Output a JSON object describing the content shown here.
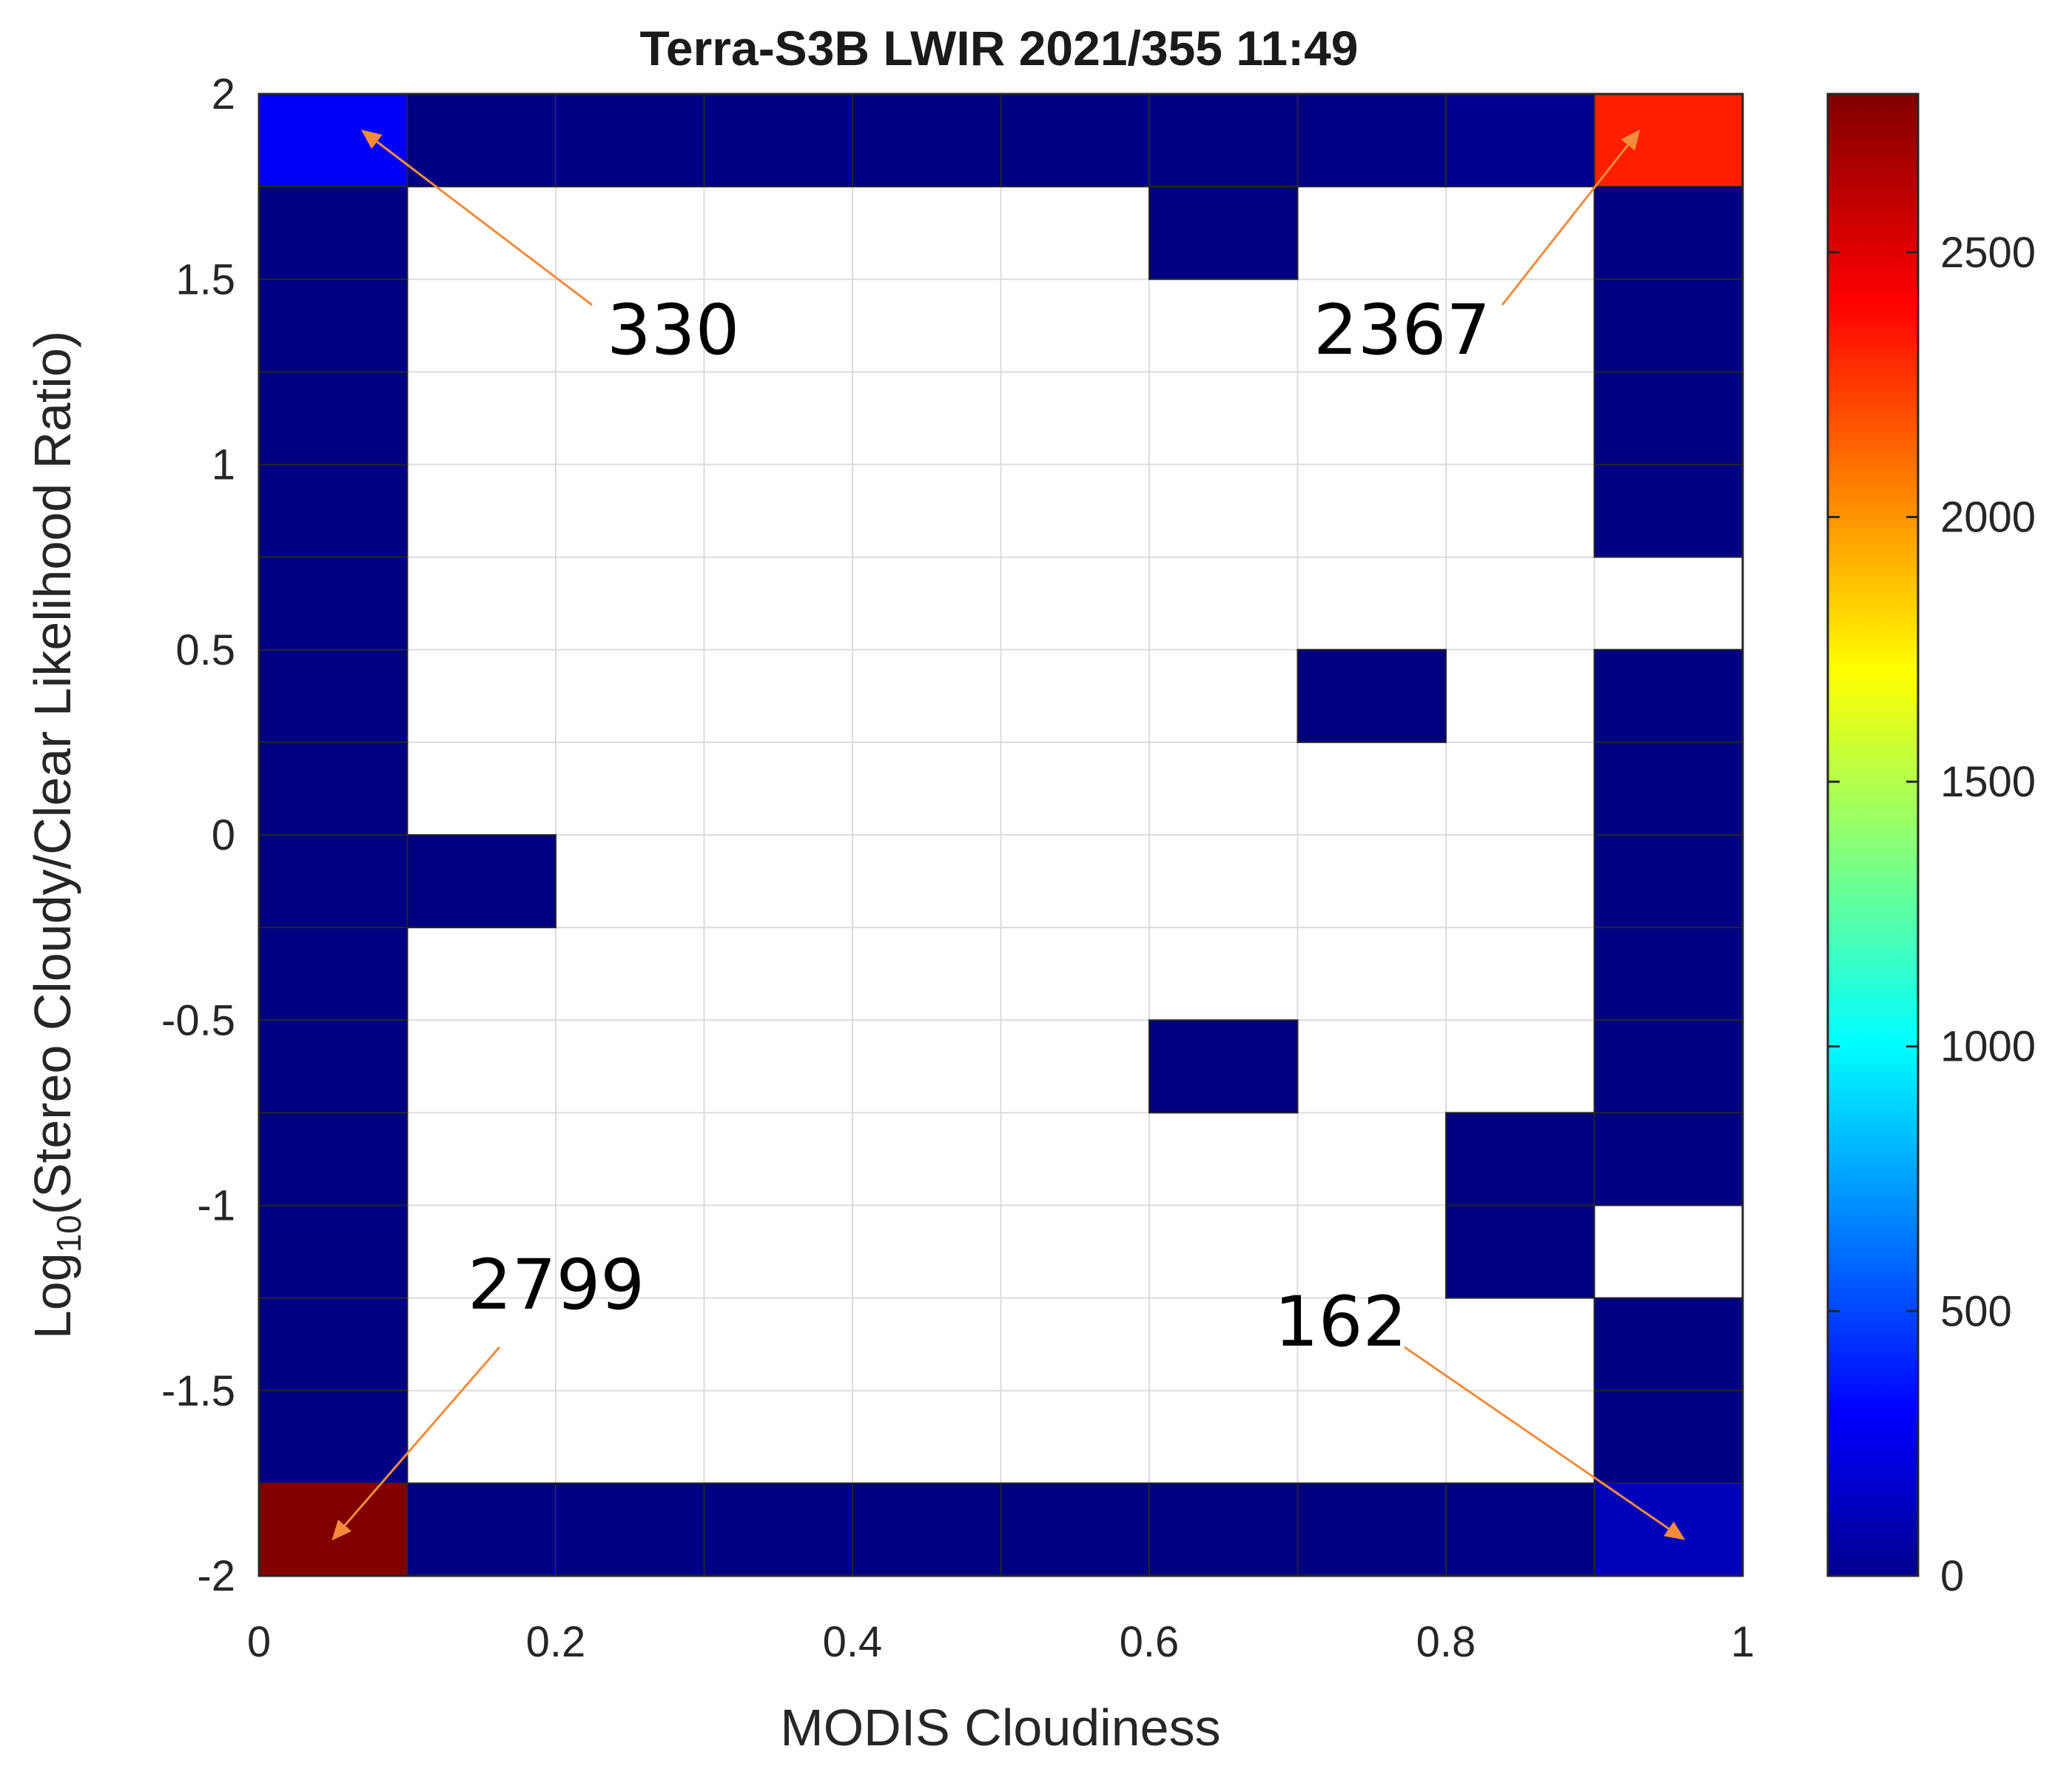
{
  "chart_data": {
    "type": "heatmap",
    "title": "Terra-S3B LWIR 2021/355 11:49",
    "xlabel": "MODIS Cloudiness",
    "ylabel_prefix": "Log",
    "ylabel_sub": "10",
    "ylabel_suffix": "(Stereo Cloudy/Clear Likelihood Ratio)",
    "xlim": [
      0,
      1
    ],
    "ylim": [
      -2,
      2
    ],
    "x_bin_width": 0.1,
    "y_bin_width": 0.25,
    "x_ticks": [
      "0",
      "0.2",
      "0.4",
      "0.6",
      "0.8",
      "1"
    ],
    "x_tick_values": [
      0,
      0.2,
      0.4,
      0.6,
      0.8,
      1
    ],
    "y_ticks": [
      "2",
      "1.5",
      "1",
      "0.5",
      "0",
      "-0.5",
      "-1",
      "-1.5",
      "-2"
    ],
    "y_tick_values": [
      2,
      1.5,
      1,
      0.5,
      0,
      -0.5,
      -1,
      -1.5,
      -2
    ],
    "grid": true,
    "colormap": "jet",
    "colorbar": {
      "range": [
        0,
        2799
      ],
      "ticks": [
        "0",
        "500",
        "1000",
        "1500",
        "2000",
        "2500"
      ],
      "tick_values": [
        0,
        500,
        1000,
        1500,
        2000,
        2500
      ],
      "placement": "right"
    },
    "cells": [
      {
        "x": 0.0,
        "y": 1.75,
        "value": 330
      },
      {
        "x": 0.1,
        "y": 1.75,
        "value": 15
      },
      {
        "x": 0.2,
        "y": 1.75,
        "value": 12
      },
      {
        "x": 0.3,
        "y": 1.75,
        "value": 10
      },
      {
        "x": 0.4,
        "y": 1.75,
        "value": 10
      },
      {
        "x": 0.5,
        "y": 1.75,
        "value": 12
      },
      {
        "x": 0.6,
        "y": 1.75,
        "value": 15
      },
      {
        "x": 0.7,
        "y": 1.75,
        "value": 20
      },
      {
        "x": 0.8,
        "y": 1.75,
        "value": 45
      },
      {
        "x": 0.9,
        "y": 1.75,
        "value": 2367
      },
      {
        "x": 0.0,
        "y": 1.5,
        "value": 10
      },
      {
        "x": 0.0,
        "y": 1.25,
        "value": 8
      },
      {
        "x": 0.0,
        "y": 1.0,
        "value": 8
      },
      {
        "x": 0.0,
        "y": 0.75,
        "value": 6
      },
      {
        "x": 0.0,
        "y": 0.5,
        "value": 6
      },
      {
        "x": 0.0,
        "y": 0.25,
        "value": 5
      },
      {
        "x": 0.0,
        "y": 0.0,
        "value": 5
      },
      {
        "x": 0.0,
        "y": -0.25,
        "value": 5
      },
      {
        "x": 0.0,
        "y": -0.5,
        "value": 6
      },
      {
        "x": 0.0,
        "y": -0.75,
        "value": 6
      },
      {
        "x": 0.0,
        "y": -1.0,
        "value": 8
      },
      {
        "x": 0.0,
        "y": -1.25,
        "value": 8
      },
      {
        "x": 0.0,
        "y": -1.5,
        "value": 10
      },
      {
        "x": 0.0,
        "y": -1.75,
        "value": 10
      },
      {
        "x": 0.0,
        "y": -2.0,
        "value": 2799
      },
      {
        "x": 0.1,
        "y": -0.25,
        "value": 2
      },
      {
        "x": 0.6,
        "y": 1.5,
        "value": 2
      },
      {
        "x": 0.7,
        "y": 0.25,
        "value": 2
      },
      {
        "x": 0.6,
        "y": -0.75,
        "value": 2
      },
      {
        "x": 0.8,
        "y": -1.0,
        "value": 3
      },
      {
        "x": 0.8,
        "y": -1.25,
        "value": 3
      },
      {
        "x": 0.9,
        "y": 1.5,
        "value": 12
      },
      {
        "x": 0.9,
        "y": 1.25,
        "value": 10
      },
      {
        "x": 0.9,
        "y": 1.0,
        "value": 8
      },
      {
        "x": 0.9,
        "y": 0.75,
        "value": 8
      },
      {
        "x": 0.9,
        "y": 0.25,
        "value": 6
      },
      {
        "x": 0.9,
        "y": 0.0,
        "value": 6
      },
      {
        "x": 0.9,
        "y": -0.25,
        "value": 6
      },
      {
        "x": 0.9,
        "y": -0.5,
        "value": 6
      },
      {
        "x": 0.9,
        "y": -0.75,
        "value": 8
      },
      {
        "x": 0.9,
        "y": -1.0,
        "value": 8
      },
      {
        "x": 0.9,
        "y": -1.5,
        "value": 10
      },
      {
        "x": 0.9,
        "y": -1.75,
        "value": 12
      },
      {
        "x": 0.9,
        "y": -2.0,
        "value": 162
      },
      {
        "x": 0.1,
        "y": -2.0,
        "value": 15
      },
      {
        "x": 0.2,
        "y": -2.0,
        "value": 12
      },
      {
        "x": 0.3,
        "y": -2.0,
        "value": 10
      },
      {
        "x": 0.4,
        "y": -2.0,
        "value": 10
      },
      {
        "x": 0.5,
        "y": -2.0,
        "value": 10
      },
      {
        "x": 0.6,
        "y": -2.0,
        "value": 12
      },
      {
        "x": 0.7,
        "y": -2.0,
        "value": 15
      },
      {
        "x": 0.8,
        "y": -2.0,
        "value": 20
      }
    ],
    "annotations": [
      {
        "text": "330",
        "arrow_to": {
          "x": 0.07,
          "y": 1.9
        },
        "color": "#f28c3c"
      },
      {
        "text": "2367",
        "arrow_to": {
          "x": 0.93,
          "y": 1.9
        },
        "color": "#f28c3c"
      },
      {
        "text": "2799",
        "arrow_to": {
          "x": 0.05,
          "y": -1.9
        },
        "color": "#f28c3c"
      },
      {
        "text": "162",
        "arrow_to": {
          "x": 0.96,
          "y": -1.9
        },
        "color": "#f28c3c"
      }
    ]
  }
}
